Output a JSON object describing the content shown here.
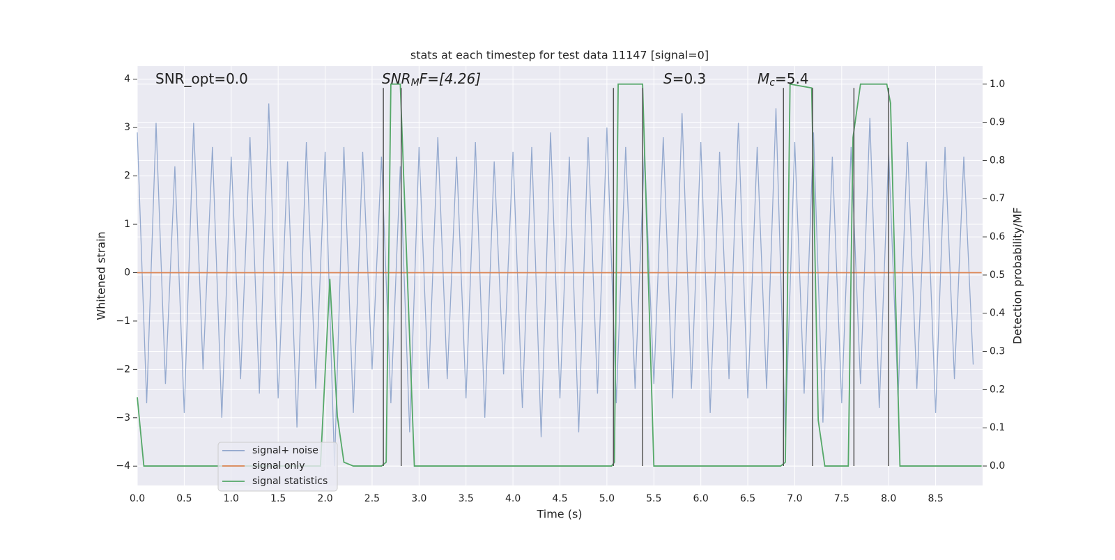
{
  "chart_data": {
    "type": "line",
    "title": "stats at each timestep for test data 11147 [signal=0]",
    "xlabel": "Time (s)",
    "ylabel": "Whitened strain",
    "y2label": "Detection probability/MF",
    "xlim": [
      0,
      9.0
    ],
    "ylim": [
      -4.4,
      4.27
    ],
    "y2lim": [
      -0.051,
      1.047
    ],
    "xticks": [
      {
        "value": 0,
        "label": "0.0"
      },
      0.5,
      {
        "value": 1,
        "label": "1.0"
      },
      1.5,
      {
        "value": 2,
        "label": "2.0"
      },
      2.5,
      {
        "value": 3,
        "label": "3.0"
      },
      3.5,
      {
        "value": 4,
        "label": "4.0"
      },
      4.5,
      {
        "value": 5,
        "label": "5.0"
      },
      5.5,
      {
        "value": 6,
        "label": "6.0"
      },
      6.5,
      {
        "value": 7,
        "label": "7.0"
      },
      7.5,
      {
        "value": 8,
        "label": "8.0"
      },
      8.5
    ],
    "yticks": [
      {
        "value": -4,
        "label": "−4"
      },
      {
        "value": -3,
        "label": "−3"
      },
      {
        "value": -2,
        "label": "−2"
      },
      {
        "value": -1,
        "label": "−1"
      },
      0,
      1,
      2,
      3,
      4
    ],
    "y2ticks": [
      {
        "value": 0,
        "label": "0.0"
      },
      0.1,
      0.2,
      0.3,
      0.4,
      0.5,
      0.6,
      0.7,
      0.8,
      0.9,
      {
        "value": 1,
        "label": "1.0"
      }
    ],
    "grid": true,
    "legend": "lower left",
    "series": [
      {
        "name": "signal+ noise",
        "color": "#4c72b0",
        "x": [
          0.0,
          0.1,
          0.2,
          0.3,
          0.4,
          0.5,
          0.6,
          0.7,
          0.8,
          0.9,
          1.0,
          1.1,
          1.2,
          1.3,
          1.4,
          1.5,
          1.6,
          1.7,
          1.8,
          1.9,
          2.0,
          2.1,
          2.2,
          2.3,
          2.4,
          2.5,
          2.6,
          2.7,
          2.8,
          2.9,
          3.0,
          3.1,
          3.2,
          3.3,
          3.4,
          3.5,
          3.6,
          3.7,
          3.8,
          3.9,
          4.0,
          4.1,
          4.2,
          4.3,
          4.4,
          4.5,
          4.6,
          4.7,
          4.8,
          4.9,
          5.0,
          5.1,
          5.2,
          5.3,
          5.4,
          5.5,
          5.6,
          5.7,
          5.8,
          5.9,
          6.0,
          6.1,
          6.2,
          6.3,
          6.4,
          6.5,
          6.6,
          6.7,
          6.8,
          6.9,
          7.0,
          7.1,
          7.2,
          7.3,
          7.4,
          7.5,
          7.6,
          7.7,
          7.8,
          7.9,
          8.0,
          8.1,
          8.2,
          8.3,
          8.4,
          8.5,
          8.6,
          8.7,
          8.8,
          8.9
        ],
        "values": [
          2.9,
          -2.7,
          3.1,
          -2.3,
          2.2,
          -2.9,
          3.1,
          -2.0,
          2.6,
          -3.0,
          2.4,
          -2.2,
          2.8,
          -2.5,
          3.5,
          -2.6,
          2.3,
          -3.2,
          2.7,
          -2.4,
          2.5,
          -4.0,
          2.6,
          -2.9,
          2.5,
          -2.0,
          2.4,
          -2.7,
          2.2,
          -3.3,
          2.6,
          -2.4,
          2.8,
          -2.2,
          2.4,
          -2.6,
          2.7,
          -3.0,
          2.3,
          -2.1,
          2.5,
          -2.8,
          2.6,
          -3.4,
          2.9,
          -2.6,
          2.4,
          -3.3,
          2.8,
          -2.5,
          3.0,
          -2.7,
          2.6,
          -2.4,
          2.5,
          -2.3,
          2.8,
          -2.6,
          3.3,
          -2.4,
          2.7,
          -2.9,
          2.5,
          -2.2,
          3.1,
          -2.6,
          2.6,
          -2.4,
          3.4,
          -3.4,
          2.7,
          -2.5,
          2.9,
          -3.1,
          2.4,
          -2.7,
          2.6,
          -2.3,
          3.2,
          -2.8,
          2.5,
          -2.6,
          2.7,
          -2.4,
          2.3,
          -2.9,
          2.6,
          -2.2,
          2.4,
          -1.9
        ]
      },
      {
        "name": "signal only",
        "color": "#dd8452",
        "x": [
          0,
          8.99
        ],
        "values": [
          0,
          0
        ]
      },
      {
        "name": "signal statistics",
        "color": "#55a868",
        "axis": "y2",
        "x": [
          0,
          0.07,
          1.95,
          2.05,
          2.13,
          2.2,
          2.3,
          2.6,
          2.65,
          2.7,
          2.8,
          2.95,
          5.05,
          5.08,
          5.12,
          5.38,
          5.5,
          6.85,
          6.9,
          6.95,
          7.18,
          7.25,
          7.32,
          7.57,
          7.62,
          7.7,
          7.98,
          8.02,
          8.12,
          8.99
        ],
        "values": [
          0.18,
          0.0,
          0.0,
          0.49,
          0.13,
          0.01,
          0.0,
          0.0,
          0.01,
          1.0,
          1.0,
          0.0,
          0.0,
          0.01,
          1.0,
          1.0,
          0.0,
          0.0,
          0.01,
          1.0,
          0.99,
          0.12,
          0.0,
          0.0,
          0.86,
          1.0,
          1.0,
          0.95,
          0.0,
          0.0
        ]
      }
    ],
    "event_lines": {
      "color": "#555555",
      "x": [
        2.62,
        2.81,
        5.07,
        5.38,
        6.88,
        7.19,
        7.63,
        8.0
      ],
      "ymin": 0,
      "ymax": 0.99
    },
    "annotations": [
      {
        "text": "SNR_opt=0.0"
      },
      {
        "math": "SNR",
        "sub": "M",
        "text": "F=[4.26]"
      },
      {
        "math": "S",
        "text": "=0.3"
      },
      {
        "math": "M",
        "sub": "c",
        "text": "=5.4"
      }
    ]
  }
}
